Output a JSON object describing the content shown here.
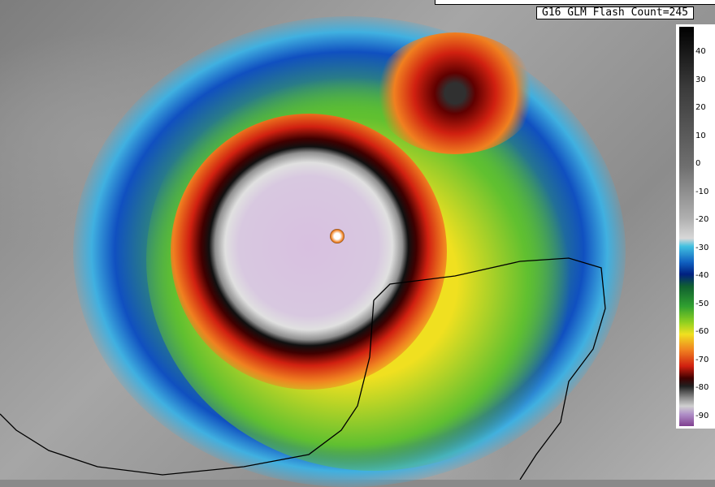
{
  "overlay": {
    "flash_count_label": "G16 GLM Flash Count=245"
  },
  "colorbar": {
    "ticks": [
      "40",
      "30",
      "20",
      "10",
      "0",
      "-10",
      "-20",
      "-30",
      "-40",
      "-50",
      "-60",
      "-70",
      "-80",
      "-90"
    ],
    "colors": {
      "warm": "#000000",
      "cold_top": "#804090",
      "eyewall": "#d02010"
    }
  }
}
